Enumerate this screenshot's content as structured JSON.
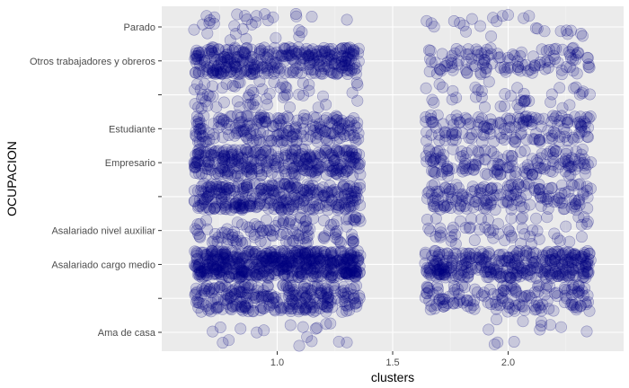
{
  "chart_data": {
    "type": "scatter",
    "subtype": "jitter",
    "title": "",
    "xlabel": "clusters",
    "ylabel": "OCUPACION",
    "x_ticks": [
      "1.0",
      "1.5",
      "2.0"
    ],
    "x_tick_values": [
      1.0,
      1.5,
      2.0
    ],
    "xlim": [
      0.5,
      2.5
    ],
    "y_categories": [
      "Ama de casa",
      "",
      "Asalariado cargo medio",
      "Asalariado nivel auxiliar",
      "",
      "Empresario",
      "Estudiante",
      "",
      "Otros trabajadores y obreros",
      "Parado"
    ],
    "grid": true,
    "legend": "none",
    "point_color": "#000080",
    "point_alpha": 0.15,
    "panel_background": "#ebebeb",
    "series": [
      {
        "x": [
          1,
          2
        ],
        "counts": [
          [
            18,
            12
          ],
          [
            260,
            150
          ],
          [
            520,
            330
          ],
          [
            120,
            60
          ],
          [
            300,
            160
          ],
          [
            300,
            150
          ],
          [
            200,
            150
          ],
          [
            60,
            40
          ],
          [
            320,
            120
          ],
          [
            30,
            25
          ]
        ]
      }
    ]
  }
}
